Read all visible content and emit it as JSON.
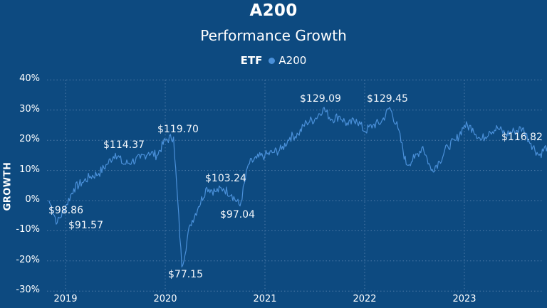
{
  "header": {
    "title": "A200",
    "subtitle": "Performance Growth"
  },
  "legend": {
    "title": "ETF",
    "items": [
      {
        "label": "A200",
        "color": "#4a90d9"
      }
    ]
  },
  "axes": {
    "ylabel": "GROWTH",
    "yticks": [
      "40%",
      "30%",
      "20%",
      "10%",
      "0%",
      "-10%",
      "-20%",
      "-30%"
    ],
    "xticks": [
      "2019",
      "2020",
      "2021",
      "2022",
      "2023"
    ]
  },
  "colors": {
    "background": "#0d4a80",
    "line": "#4a90d9",
    "grid": "#5f88b3",
    "text": "#ffffff"
  },
  "annotations": [
    {
      "label": "$98.86",
      "x_date": "2018-11",
      "growth": 0
    },
    {
      "label": "$91.57",
      "x_date": "2018-12",
      "growth": -7.4
    },
    {
      "label": "$114.37",
      "x_date": "2019-07",
      "growth": 15.7
    },
    {
      "label": "$119.70",
      "x_date": "2020-02",
      "growth": 21.1
    },
    {
      "label": "$77.15",
      "x_date": "2020-03",
      "growth": -22.0
    },
    {
      "label": "$103.24",
      "x_date": "2020-06",
      "growth": 4.4
    },
    {
      "label": "$97.04",
      "x_date": "2020-10",
      "growth": -1.8
    },
    {
      "label": "$129.09",
      "x_date": "2021-08",
      "growth": 30.6
    },
    {
      "label": "$129.45",
      "x_date": "2022-04",
      "growth": 30.9
    },
    {
      "label": "$116.82",
      "x_date": "2023-11",
      "growth": 18.2
    }
  ],
  "chart_data": {
    "type": "line",
    "title": "A200",
    "subtitle": "Performance Growth",
    "xlabel": "",
    "ylabel": "GROWTH",
    "ylim": [
      -30,
      40
    ],
    "y_unit": "%",
    "grid": true,
    "legend_position": "top",
    "legend_title": "ETF",
    "series": [
      {
        "name": "A200",
        "x": [
          "2018-11",
          "2018-12",
          "2019-01",
          "2019-02",
          "2019-03",
          "2019-04",
          "2019-05",
          "2019-06",
          "2019-07",
          "2019-08",
          "2019-09",
          "2019-10",
          "2019-11",
          "2019-12",
          "2020-01",
          "2020-02",
          "2020-03",
          "2020-04",
          "2020-05",
          "2020-06",
          "2020-07",
          "2020-08",
          "2020-09",
          "2020-10",
          "2020-11",
          "2020-12",
          "2021-01",
          "2021-02",
          "2021-03",
          "2021-04",
          "2021-05",
          "2021-06",
          "2021-07",
          "2021-08",
          "2021-09",
          "2021-10",
          "2021-11",
          "2021-12",
          "2022-01",
          "2022-02",
          "2022-03",
          "2022-04",
          "2022-05",
          "2022-06",
          "2022-07",
          "2022-08",
          "2022-09",
          "2022-10",
          "2022-11",
          "2022-12",
          "2023-01",
          "2023-02",
          "2023-03",
          "2023-04",
          "2023-05",
          "2023-06",
          "2023-07",
          "2023-08",
          "2023-09",
          "2023-10",
          "2023-11"
        ],
        "values": [
          0,
          -7.4,
          -2,
          4,
          6,
          8,
          9,
          12,
          15.7,
          12,
          13,
          14,
          16,
          15,
          20,
          21.1,
          -22,
          -8,
          -2,
          4.4,
          3,
          4,
          2,
          -1.8,
          12,
          14,
          15,
          16,
          17,
          21,
          22,
          26,
          27,
          30.6,
          27,
          28,
          25,
          27,
          23,
          25,
          26,
          30.9,
          24,
          12,
          14,
          18,
          10,
          13,
          18,
          20,
          25,
          24,
          20,
          23,
          24,
          22,
          23,
          24,
          19,
          15,
          18.2
        ]
      }
    ],
    "data_labels": [
      "$98.86",
      "$91.57",
      "$114.37",
      "$119.70",
      "$77.15",
      "$103.24",
      "$97.04",
      "$129.09",
      "$129.45",
      "$116.82"
    ]
  }
}
